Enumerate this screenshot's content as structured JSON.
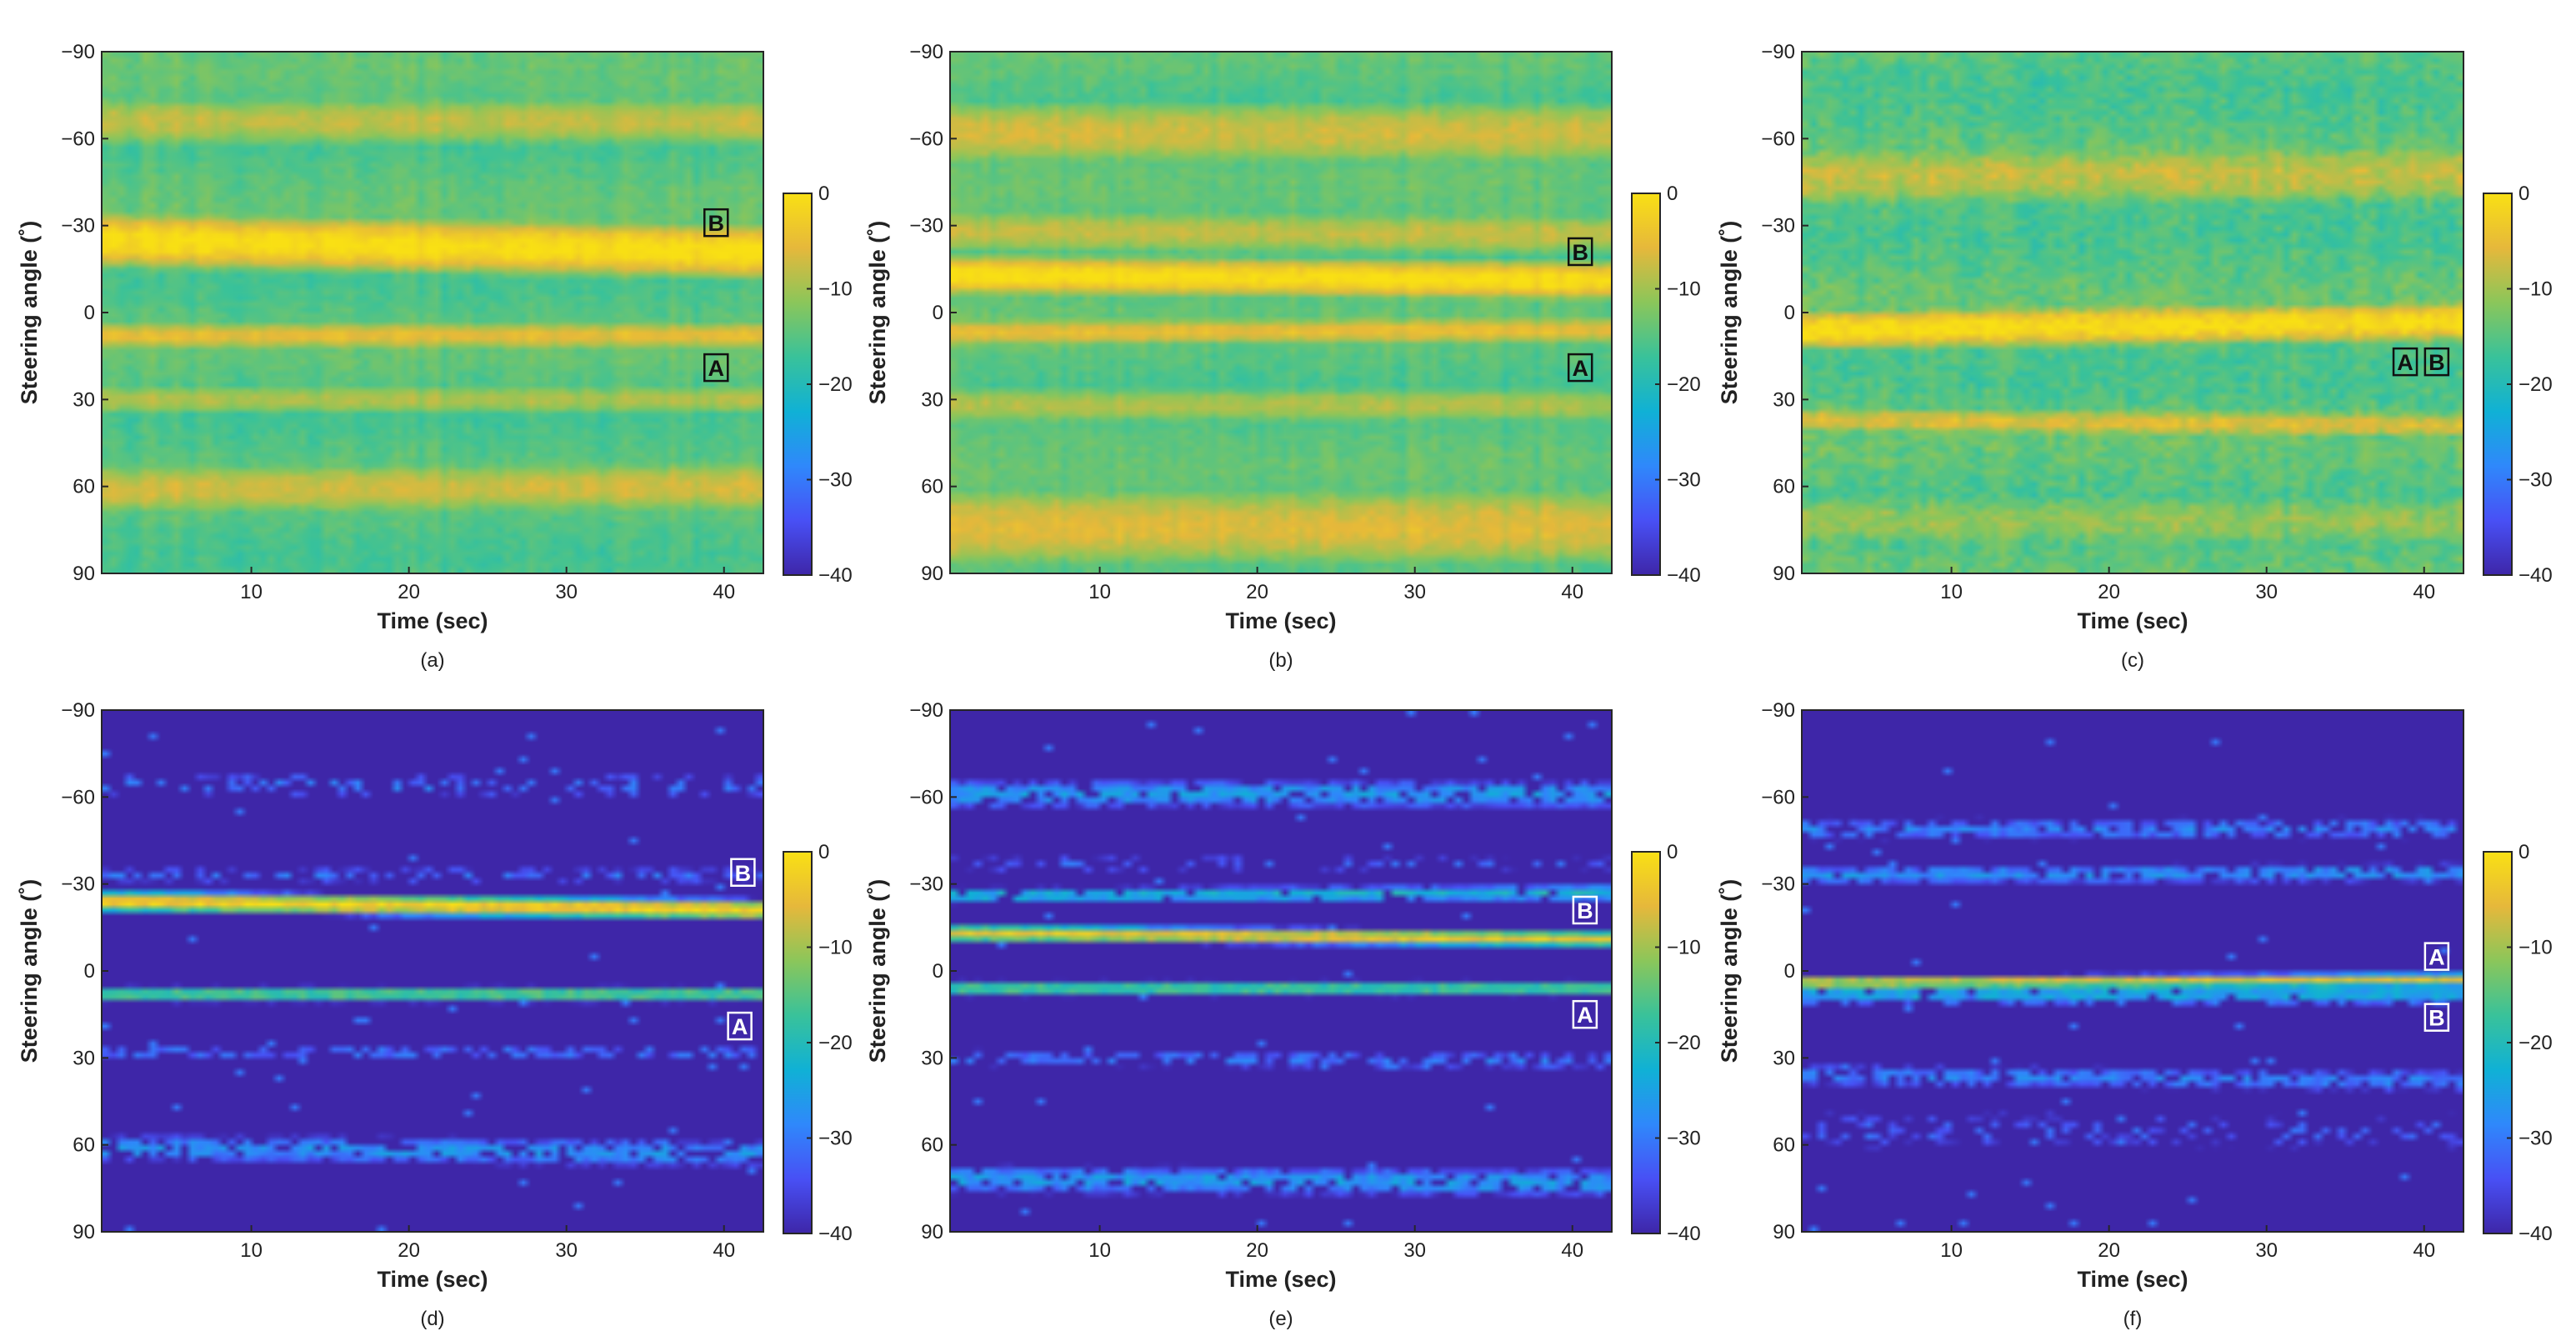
{
  "colorbar": {
    "stops": [
      "#3e26a8",
      "#4850f5",
      "#2f88fb",
      "#10b1d5",
      "#39c29a",
      "#8bc65a",
      "#e6b83b",
      "#f9e014"
    ],
    "ticks": [
      0,
      -10,
      -20,
      -30,
      -40
    ],
    "tick_labels": [
      "0",
      "−10",
      "−20",
      "−30",
      "−40"
    ],
    "range": [
      -40,
      0
    ]
  },
  "chart_data": [
    {
      "type": "heatmap",
      "id": "a",
      "sublabel": "(a)",
      "kind": "conventional",
      "xlabel": "Time (sec)",
      "ylabel": "Steering angle (˚)",
      "xlim": [
        0.5,
        42.5
      ],
      "ylim": [
        -90,
        90
      ],
      "xticks": [
        10,
        20,
        30,
        40
      ],
      "xtick_labels": [
        "10",
        "20",
        "30",
        "40"
      ],
      "yticks": [
        -90,
        -60,
        -30,
        0,
        30,
        60,
        90
      ],
      "ytick_labels": [
        "−90",
        "−60",
        "−30",
        "0",
        "30",
        "60",
        "90"
      ],
      "zlim": [
        -40,
        0
      ],
      "noise": 1.2,
      "ridges": [
        {
          "start": -25,
          "end": -21,
          "width": 7,
          "level": 0
        },
        {
          "start": 8,
          "end": 8,
          "width": 4,
          "level": -5
        },
        {
          "start": 61,
          "end": 60,
          "width": 8,
          "level": -7
        },
        {
          "start": -66,
          "end": -66,
          "width": 8,
          "level": -8
        },
        {
          "start": 30,
          "end": 30,
          "width": 5,
          "level": -9
        }
      ],
      "markers": [
        {
          "text": "B",
          "t": 39.5,
          "angle": -31
        },
        {
          "text": "A",
          "t": 39.5,
          "angle": 19
        }
      ]
    },
    {
      "type": "heatmap",
      "id": "b",
      "sublabel": "(b)",
      "kind": "conventional",
      "xlabel": "Time (sec)",
      "ylabel": "Steering angle (˚)",
      "xlim": [
        0.5,
        42.5
      ],
      "ylim": [
        -90,
        90
      ],
      "xticks": [
        10,
        20,
        30,
        40
      ],
      "xtick_labels": [
        "10",
        "20",
        "30",
        "40"
      ],
      "yticks": [
        -90,
        -60,
        -30,
        0,
        30,
        60,
        90
      ],
      "ytick_labels": [
        "−90",
        "−60",
        "−30",
        "0",
        "30",
        "60",
        "90"
      ],
      "zlim": [
        -40,
        0
      ],
      "noise": 1.2,
      "ridges": [
        {
          "start": -13,
          "end": -11,
          "width": 5,
          "level": 0
        },
        {
          "start": 7,
          "end": 6,
          "width": 4,
          "level": -5
        },
        {
          "start": -62,
          "end": -62,
          "width": 10,
          "level": -7
        },
        {
          "start": 74,
          "end": 74,
          "width": 12,
          "level": -6
        },
        {
          "start": -28,
          "end": -27,
          "width": 7,
          "level": -8
        },
        {
          "start": 32,
          "end": 32,
          "width": 6,
          "level": -9
        }
      ],
      "markers": [
        {
          "text": "B",
          "t": 40.5,
          "angle": -21
        },
        {
          "text": "A",
          "t": 40.5,
          "angle": 19
        }
      ]
    },
    {
      "type": "heatmap",
      "id": "c",
      "sublabel": "(c)",
      "kind": "conventional",
      "xlabel": "Time (sec)",
      "ylabel": "Steering angle (˚)",
      "xlim": [
        0.5,
        42.5
      ],
      "ylim": [
        -90,
        90
      ],
      "xticks": [
        10,
        20,
        30,
        40
      ],
      "xtick_labels": [
        "10",
        "20",
        "30",
        "40"
      ],
      "yticks": [
        -90,
        -60,
        -30,
        0,
        30,
        60,
        90
      ],
      "ytick_labels": [
        "−90",
        "−60",
        "−30",
        "0",
        "30",
        "60",
        "90"
      ],
      "zlim": [
        -40,
        0
      ],
      "noise": 2.2,
      "ridges": [
        {
          "start": 6,
          "end": 3,
          "width": 5,
          "level": 0
        },
        {
          "start": 37,
          "end": 39,
          "width": 4,
          "level": -6
        },
        {
          "start": -47,
          "end": -48,
          "width": 10,
          "level": -8
        },
        {
          "start": 72,
          "end": 72,
          "width": 10,
          "level": -11
        }
      ],
      "markers": [
        {
          "text": "A",
          "t": 38.8,
          "angle": 17
        },
        {
          "text": "B",
          "t": 40.8,
          "angle": 17
        }
      ]
    },
    {
      "type": "heatmap",
      "id": "d",
      "sublabel": "(d)",
      "kind": "sparse",
      "xlabel": "Time (sec)",
      "ylabel": "Steering angle (˚)",
      "xlim": [
        0.5,
        42.5
      ],
      "ylim": [
        -90,
        90
      ],
      "xticks": [
        10,
        20,
        30,
        40
      ],
      "xtick_labels": [
        "10",
        "20",
        "30",
        "40"
      ],
      "yticks": [
        -90,
        -60,
        -30,
        0,
        30,
        60,
        90
      ],
      "ytick_labels": [
        "−90",
        "−60",
        "−30",
        "0",
        "30",
        "60",
        "90"
      ],
      "zlim": [
        -40,
        0
      ],
      "ridges": [
        {
          "start": -24,
          "end": -21,
          "spread": 1.5,
          "level": -2,
          "density": 1.0
        },
        {
          "start": 8,
          "end": 8,
          "spread": 1.3,
          "level": -14,
          "density": 1.0
        },
        {
          "start": 61,
          "end": 63,
          "spread": 3,
          "level": -27,
          "density": 0.75
        },
        {
          "start": -64,
          "end": -64,
          "spread": 3,
          "level": -30,
          "density": 0.3
        },
        {
          "start": 28,
          "end": 28,
          "spread": 1.5,
          "level": -30,
          "density": 0.5
        },
        {
          "start": -33,
          "end": -33,
          "spread": 2,
          "level": -31,
          "density": 0.4
        }
      ],
      "markers": [
        {
          "text": "B",
          "t": 41.2,
          "angle": -34
        },
        {
          "text": "A",
          "t": 41.0,
          "angle": 19
        }
      ]
    },
    {
      "type": "heatmap",
      "id": "e",
      "sublabel": "(e)",
      "kind": "sparse",
      "xlabel": "Time (sec)",
      "ylabel": "Steering angle (˚)",
      "xlim": [
        0.5,
        42.5
      ],
      "ylim": [
        -90,
        90
      ],
      "xticks": [
        10,
        20,
        30,
        40
      ],
      "xtick_labels": [
        "10",
        "20",
        "30",
        "40"
      ],
      "yticks": [
        -90,
        -60,
        -30,
        0,
        30,
        60,
        90
      ],
      "ytick_labels": [
        "−90",
        "−60",
        "−30",
        "0",
        "30",
        "60",
        "90"
      ],
      "zlim": [
        -40,
        0
      ],
      "ridges": [
        {
          "start": -13,
          "end": -11,
          "spread": 1.2,
          "level": -4,
          "density": 1.0
        },
        {
          "start": 6,
          "end": 6,
          "spread": 1.3,
          "level": -15,
          "density": 1.0
        },
        {
          "start": -26,
          "end": -27,
          "spread": 1.5,
          "level": -22,
          "density": 0.9
        },
        {
          "start": -61,
          "end": -61,
          "spread": 3,
          "level": -26,
          "density": 0.8
        },
        {
          "start": 72,
          "end": 73,
          "spread": 3,
          "level": -26,
          "density": 0.8
        },
        {
          "start": 30,
          "end": 31,
          "spread": 2,
          "level": -30,
          "density": 0.6
        },
        {
          "start": -37,
          "end": -37,
          "spread": 2,
          "level": -32,
          "density": 0.3
        }
      ],
      "markers": [
        {
          "text": "B",
          "t": 40.8,
          "angle": -21
        },
        {
          "text": "A",
          "t": 40.8,
          "angle": 15
        }
      ]
    },
    {
      "type": "heatmap",
      "id": "f",
      "sublabel": "(f)",
      "kind": "sparse",
      "xlabel": "Time (sec)",
      "ylabel": "Steering angle (˚)",
      "xlim": [
        0.5,
        42.5
      ],
      "ylim": [
        -90,
        90
      ],
      "xticks": [
        10,
        20,
        30,
        40
      ],
      "xtick_labels": [
        "10",
        "20",
        "30",
        "40"
      ],
      "yticks": [
        -90,
        -60,
        -30,
        0,
        30,
        60,
        90
      ],
      "ytick_labels": [
        "−90",
        "−60",
        "−30",
        "0",
        "30",
        "60",
        "90"
      ],
      "zlim": [
        -40,
        0
      ],
      "ridges": [
        {
          "start": 4,
          "end": 3,
          "spread": 1.0,
          "level": -6,
          "density": 1.0
        },
        {
          "start": 8,
          "end": 8,
          "spread": 1.3,
          "level": -22,
          "density": 0.9
        },
        {
          "start": -33,
          "end": -34,
          "spread": 2,
          "level": -27,
          "density": 0.8
        },
        {
          "start": -49,
          "end": -49,
          "spread": 2.5,
          "level": -29,
          "density": 0.7
        },
        {
          "start": 36,
          "end": 38,
          "spread": 2.5,
          "level": -29,
          "density": 0.7
        },
        {
          "start": 55,
          "end": 55,
          "spread": 5,
          "level": -33,
          "density": 0.25
        },
        {
          "start": 10,
          "end": 10,
          "spread": 1.5,
          "level": -30,
          "density": 0.5
        }
      ],
      "markers": [
        {
          "text": "A",
          "t": 40.8,
          "angle": -5
        },
        {
          "text": "B",
          "t": 40.8,
          "angle": 16
        }
      ]
    }
  ]
}
